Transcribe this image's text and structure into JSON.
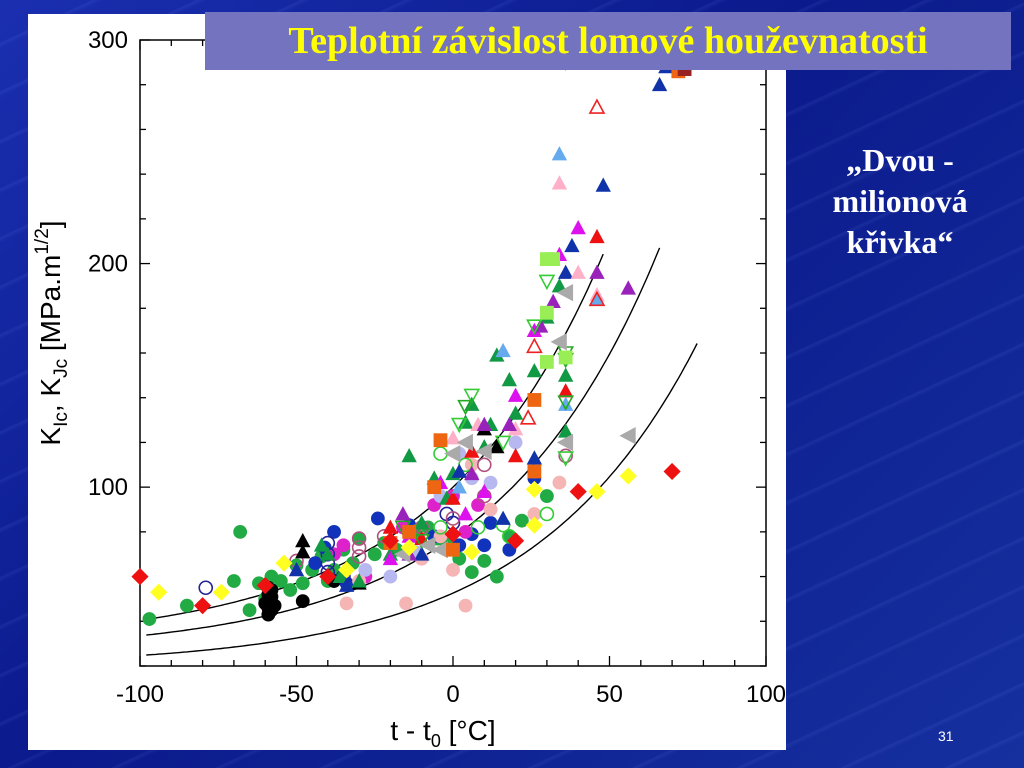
{
  "slide": {
    "title": "Teplotní závislost lomové houževnatosti",
    "note_lines": [
      "„Dvou -",
      "milionová",
      "křivka“"
    ],
    "slide_number": "31",
    "colors": {
      "title_text": "#ffff00",
      "title_bg": "#7373bf",
      "background": "#1428a8"
    }
  },
  "chart_data": {
    "type": "scatter",
    "xlabel_parts": [
      "t - t",
      "0",
      "   [°C]"
    ],
    "ylabel_parts": [
      "K",
      "Ic",
      ", K",
      "Jc",
      "    [MPa.m",
      "1/2",
      "]"
    ],
    "xlim": [
      -100,
      100
    ],
    "ylim": [
      20,
      300
    ],
    "x_ticks": [
      "-100",
      "-50",
      "0",
      "50",
      "100"
    ],
    "x_tick_values": [
      -100,
      -50,
      0,
      50,
      100
    ],
    "y_ticks": [
      "100",
      "200",
      "300"
    ],
    "y_tick_values": [
      100,
      200,
      300
    ],
    "curves": [
      {
        "name": "upper",
        "a": 30,
        "b": 70,
        "c": 0.019,
        "t_from": -98,
        "t_to": 48
      },
      {
        "name": "median",
        "a": 30,
        "b": 70,
        "c": 0.019,
        "shift": 8,
        "scale": 0.86,
        "t_from": -98,
        "t_to": 66
      },
      {
        "name": "lower",
        "a": 30,
        "b": 70,
        "c": 0.019,
        "shift": 18,
        "scale": 0.66,
        "t_from": -98,
        "t_to": 78
      }
    ],
    "series": [
      {
        "marker": "circle",
        "filled": true,
        "color": "#22aa44",
        "points": [
          [
            -97,
            41
          ],
          [
            -85,
            47
          ],
          [
            -70,
            58
          ],
          [
            -68,
            80
          ],
          [
            -65,
            45
          ],
          [
            -62,
            57
          ],
          [
            -60,
            50
          ],
          [
            -58,
            60
          ],
          [
            -55,
            58
          ],
          [
            -52,
            54
          ],
          [
            -50,
            65
          ],
          [
            -48,
            57
          ],
          [
            -45,
            63
          ],
          [
            -42,
            69
          ],
          [
            -40,
            58
          ],
          [
            -38,
            63
          ],
          [
            -35,
            72
          ],
          [
            -32,
            66
          ],
          [
            -30,
            77
          ],
          [
            -25,
            70
          ],
          [
            -22,
            75
          ],
          [
            -18,
            72
          ],
          [
            -12,
            79
          ],
          [
            -8,
            82
          ],
          [
            -5,
            77
          ],
          [
            -2,
            75
          ],
          [
            2,
            68
          ],
          [
            6,
            62
          ],
          [
            10,
            67
          ],
          [
            14,
            60
          ],
          [
            18,
            78
          ],
          [
            22,
            85
          ],
          [
            30,
            96
          ]
        ]
      },
      {
        "marker": "circle",
        "filled": true,
        "color": "#000000",
        "points": [
          [
            -59,
            43
          ],
          [
            -59,
            46
          ],
          [
            -59,
            49
          ],
          [
            -59,
            52
          ],
          [
            -59,
            55
          ],
          [
            -58,
            45
          ],
          [
            -60,
            48
          ],
          [
            -58,
            51
          ],
          [
            -58,
            54
          ],
          [
            -57,
            47
          ],
          [
            -48,
            49
          ],
          [
            -38,
            58
          ]
        ]
      },
      {
        "marker": "circle",
        "filled": true,
        "color": "#1133bb",
        "points": [
          [
            -44,
            66
          ],
          [
            -41,
            73
          ],
          [
            -38,
            80
          ],
          [
            -34,
            57
          ],
          [
            -24,
            86
          ],
          [
            -14,
            83
          ],
          [
            -6,
            78
          ],
          [
            2,
            74
          ],
          [
            6,
            79
          ],
          [
            10,
            74
          ],
          [
            12,
            84
          ],
          [
            18,
            72
          ],
          [
            26,
            104
          ]
        ]
      },
      {
        "marker": "circle",
        "filled": true,
        "color": "#dd22cc",
        "points": [
          [
            -38,
            70
          ],
          [
            -35,
            74
          ],
          [
            -28,
            60
          ],
          [
            -16,
            82
          ],
          [
            -6,
            92
          ],
          [
            0,
            96
          ],
          [
            4,
            80
          ],
          [
            8,
            92
          ]
        ]
      },
      {
        "marker": "circle",
        "filled": true,
        "color": "#f5b5b5",
        "points": [
          [
            -34,
            48
          ],
          [
            -30,
            58
          ],
          [
            -15,
            48
          ],
          [
            -10,
            68
          ],
          [
            -4,
            78
          ],
          [
            0,
            63
          ],
          [
            4,
            47
          ],
          [
            6,
            110
          ],
          [
            12,
            90
          ],
          [
            26,
            88
          ],
          [
            34,
            102
          ]
        ]
      },
      {
        "marker": "circle",
        "filled": true,
        "color": "#b8b8f0",
        "points": [
          [
            -28,
            63
          ],
          [
            -20,
            60
          ],
          [
            -12,
            71
          ],
          [
            -4,
            96
          ],
          [
            2,
            115
          ],
          [
            6,
            104
          ],
          [
            12,
            102
          ],
          [
            20,
            120
          ],
          [
            26,
            107
          ]
        ]
      },
      {
        "marker": "circle",
        "filled": false,
        "color": "#222299",
        "points": [
          [
            -79,
            55
          ],
          [
            -40,
            75
          ],
          [
            -40,
            70
          ],
          [
            -40,
            66
          ],
          [
            -40,
            62
          ],
          [
            -35,
            60
          ],
          [
            -2,
            88
          ],
          [
            0,
            84
          ]
        ]
      },
      {
        "marker": "circle",
        "filled": false,
        "color": "#b05080",
        "points": [
          [
            -50,
            67
          ],
          [
            -30,
            69
          ],
          [
            -30,
            73
          ],
          [
            -30,
            77
          ],
          [
            -22,
            78
          ],
          [
            -12,
            79
          ],
          [
            -10,
            82
          ],
          [
            0,
            86
          ],
          [
            10,
            96
          ],
          [
            10,
            110
          ],
          [
            36,
            114
          ]
        ]
      },
      {
        "marker": "circle",
        "filled": false,
        "color": "#33cc33",
        "points": [
          [
            -12,
            80
          ],
          [
            -4,
            82
          ],
          [
            -4,
            115
          ],
          [
            4,
            110
          ],
          [
            8,
            82
          ],
          [
            16,
            83
          ],
          [
            18,
            78
          ],
          [
            30,
            88
          ]
        ]
      },
      {
        "marker": "triangle-up",
        "filled": true,
        "color": "#000000",
        "points": [
          [
            -48,
            76
          ],
          [
            -48,
            71
          ],
          [
            -30,
            57
          ],
          [
            10,
            126
          ],
          [
            14,
            118
          ]
        ]
      },
      {
        "marker": "triangle-up",
        "filled": true,
        "color": "#119944",
        "points": [
          [
            -42,
            74
          ],
          [
            -40,
            70
          ],
          [
            -36,
            60
          ],
          [
            -30,
            58
          ],
          [
            -20,
            70
          ],
          [
            -14,
            114
          ],
          [
            -10,
            84
          ],
          [
            -6,
            104
          ],
          [
            -2,
            95
          ],
          [
            0,
            106
          ],
          [
            4,
            129
          ],
          [
            6,
            137
          ],
          [
            10,
            118
          ],
          [
            12,
            128
          ],
          [
            14,
            159
          ],
          [
            18,
            148
          ],
          [
            20,
            133
          ],
          [
            26,
            152
          ],
          [
            30,
            176
          ],
          [
            34,
            190
          ],
          [
            36,
            150
          ],
          [
            36,
            125
          ]
        ]
      },
      {
        "marker": "triangle-up",
        "filled": true,
        "color": "#1133aa",
        "points": [
          [
            -50,
            63
          ],
          [
            -34,
            56
          ],
          [
            -10,
            70
          ],
          [
            2,
            107
          ],
          [
            16,
            86
          ],
          [
            26,
            113
          ],
          [
            36,
            196
          ],
          [
            38,
            208
          ],
          [
            48,
            235
          ],
          [
            66,
            280
          ],
          [
            68,
            288
          ]
        ]
      },
      {
        "marker": "triangle-up",
        "filled": true,
        "color": "#dd11ee",
        "points": [
          [
            -20,
            68
          ],
          [
            -14,
            78
          ],
          [
            -4,
            102
          ],
          [
            4,
            88
          ],
          [
            10,
            98
          ],
          [
            20,
            141
          ],
          [
            26,
            170
          ],
          [
            34,
            204
          ],
          [
            40,
            216
          ]
        ]
      },
      {
        "marker": "triangle-up",
        "filled": true,
        "color": "#ee1111",
        "points": [
          [
            -20,
            82
          ],
          [
            -10,
            77
          ],
          [
            0,
            95
          ],
          [
            6,
            116
          ],
          [
            20,
            114
          ],
          [
            36,
            143
          ],
          [
            46,
            212
          ]
        ]
      },
      {
        "marker": "triangle-up",
        "filled": true,
        "color": "#ffb0c8",
        "points": [
          [
            0,
            122
          ],
          [
            8,
            128
          ],
          [
            20,
            126
          ],
          [
            34,
            236
          ],
          [
            40,
            196
          ],
          [
            46,
            186
          ]
        ]
      },
      {
        "marker": "triangle-up",
        "filled": true,
        "color": "#66aaee",
        "points": [
          [
            2,
            100
          ],
          [
            16,
            161
          ],
          [
            34,
            249
          ],
          [
            36,
            137
          ],
          [
            46,
            184
          ]
        ]
      },
      {
        "marker": "triangle-up",
        "filled": false,
        "color": "#ee2222",
        "points": [
          [
            24,
            131
          ],
          [
            26,
            163
          ],
          [
            46,
            270
          ],
          [
            46,
            184
          ]
        ]
      },
      {
        "marker": "triangle-up",
        "filled": true,
        "color": "#9922bb",
        "points": [
          [
            -16,
            88
          ],
          [
            -14,
            70
          ],
          [
            6,
            106
          ],
          [
            10,
            128
          ],
          [
            18,
            128
          ],
          [
            28,
            172
          ],
          [
            32,
            183
          ],
          [
            46,
            196
          ],
          [
            56,
            189
          ]
        ]
      },
      {
        "marker": "triangle-down",
        "filled": false,
        "color": "#33cc33",
        "points": [
          [
            2,
            128
          ],
          [
            6,
            141
          ],
          [
            16,
            120
          ],
          [
            26,
            172
          ],
          [
            30,
            192
          ],
          [
            36,
            290
          ],
          [
            36,
            113
          ]
        ]
      },
      {
        "marker": "triangle-down",
        "filled": false,
        "color": "#22aa22",
        "points": [
          [
            -16,
            82
          ],
          [
            -10,
            76
          ],
          [
            4,
            136
          ],
          [
            36,
            157
          ],
          [
            36,
            160
          ],
          [
            36,
            138
          ]
        ]
      },
      {
        "marker": "triangle-left",
        "filled": true,
        "color": "#aaaaaa",
        "points": [
          [
            -16,
            70
          ],
          [
            -8,
            74
          ],
          [
            -4,
            72
          ],
          [
            0,
            115
          ],
          [
            4,
            120
          ],
          [
            10,
            116
          ],
          [
            34,
            165
          ],
          [
            36,
            187
          ],
          [
            36,
            120
          ],
          [
            56,
            123
          ]
        ]
      },
      {
        "marker": "square",
        "filled": true,
        "color": "#ee6611",
        "points": [
          [
            -20,
            75
          ],
          [
            -14,
            80
          ],
          [
            -6,
            100
          ],
          [
            0,
            72
          ],
          [
            -4,
            121
          ],
          [
            26,
            139
          ],
          [
            26,
            107
          ],
          [
            72,
            286
          ]
        ]
      },
      {
        "marker": "square",
        "filled": true,
        "color": "#99ee55",
        "points": [
          [
            30,
            156
          ],
          [
            30,
            178
          ],
          [
            30,
            202
          ],
          [
            32,
            202
          ],
          [
            36,
            158
          ]
        ]
      },
      {
        "marker": "square",
        "filled": true,
        "color": "#992222",
        "points": [
          [
            74,
            287
          ]
        ]
      },
      {
        "marker": "diamond",
        "filled": true,
        "color": "#ee1111",
        "points": [
          [
            -100,
            60
          ],
          [
            -80,
            47
          ],
          [
            -60,
            56
          ],
          [
            -40,
            60
          ],
          [
            -20,
            76
          ],
          [
            0,
            79
          ],
          [
            20,
            76
          ],
          [
            40,
            98
          ],
          [
            70,
            107
          ]
        ]
      },
      {
        "marker": "diamond",
        "filled": true,
        "color": "#ffff22",
        "points": [
          [
            -94,
            53
          ],
          [
            -74,
            53
          ],
          [
            -54,
            66
          ],
          [
            -34,
            63
          ],
          [
            -14,
            73
          ],
          [
            6,
            71
          ],
          [
            26,
            83
          ],
          [
            26,
            99
          ],
          [
            46,
            98
          ],
          [
            56,
            105
          ]
        ]
      }
    ]
  }
}
